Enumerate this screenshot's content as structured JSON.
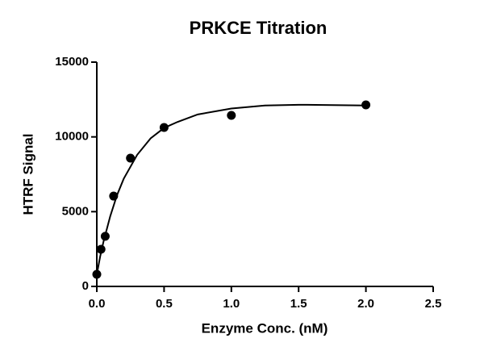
{
  "chart_data": {
    "type": "scatter",
    "title": "PRKCE Titration",
    "x_label": "Enzyme Conc. (nM)",
    "y_label": "HTRF Signal",
    "series": [
      {
        "type": "scatter",
        "color": "#000000",
        "x": [
          0,
          0.03125,
          0.0625,
          0.125,
          0.25,
          0.5,
          1,
          2
        ],
        "values": [
          810,
          2480,
          3350,
          6040,
          8580,
          10630,
          11440,
          12140
        ]
      },
      {
        "type": "line",
        "color": "#000000",
        "x": [
          0,
          0.025,
          0.05,
          0.1,
          0.15,
          0.2,
          0.3,
          0.4,
          0.5,
          0.6,
          0.75,
          1,
          1.25,
          1.5,
          1.75,
          2
        ],
        "values": [
          800,
          2000,
          3000,
          4700,
          6100,
          7200,
          8800,
          9900,
          10600,
          11000,
          11500,
          11900,
          12100,
          12150,
          12130,
          12100
        ]
      }
    ],
    "xlim": [
      0,
      2.5
    ],
    "ylim": [
      0,
      15000
    ],
    "xticks": [
      {
        "value": 0,
        "label": "0.0"
      },
      {
        "value": 0.5,
        "label": "0.5"
      },
      {
        "value": 1,
        "label": "1.0"
      },
      {
        "value": 1.5,
        "label": "1.5"
      },
      {
        "value": 2,
        "label": "2.0"
      },
      {
        "value": 2.5,
        "label": "2.5"
      }
    ],
    "yticks": [
      0,
      5000,
      10000,
      15000
    ]
  }
}
